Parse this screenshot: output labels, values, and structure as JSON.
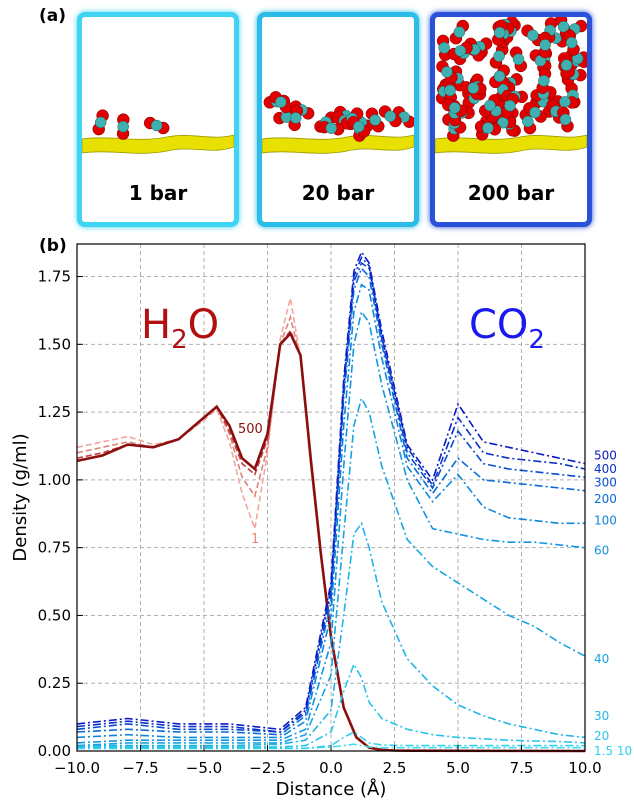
{
  "panel_a": {
    "label": "(a)",
    "snapshots": [
      {
        "pressure_label": "1 bar",
        "frame_color": "#3fd4f2",
        "molecule_level": 0.03
      },
      {
        "pressure_label": "20 bar",
        "frame_color": "#2bbde8",
        "molecule_level": 0.18
      },
      {
        "pressure_label": "200 bar",
        "frame_color": "#2a52d8",
        "molecule_level": 0.75
      }
    ]
  },
  "panel_b": {
    "label": "(b)"
  },
  "chart_data": {
    "type": "line",
    "xlabel": "Distance  (Å)",
    "ylabel": "Density  (g/ml)",
    "xlim": [
      -10.0,
      10.0
    ],
    "ylim": [
      0.0,
      1.87
    ],
    "xticks": [
      "−10.0",
      "−7.5",
      "−5.0",
      "−2.5",
      "0.0",
      "2.5",
      "5.0",
      "7.5",
      "10.0"
    ],
    "xtick_values": [
      -10,
      -7.5,
      -5,
      -2.5,
      0,
      2.5,
      5,
      7.5,
      10
    ],
    "yticks": [
      "0.00",
      "0.25",
      "0.50",
      "0.75",
      "1.00",
      "1.25",
      "1.50",
      "1.75"
    ],
    "ytick_values": [
      0,
      0.25,
      0.5,
      0.75,
      1.0,
      1.25,
      1.5,
      1.75
    ],
    "grid": true,
    "annotations": {
      "h2o": {
        "base": "H",
        "sub": "2",
        "tail": "O",
        "color": "#b01010"
      },
      "co2": {
        "base": "CO",
        "sub": "2",
        "tail": "",
        "color": "#1a1af0"
      },
      "h2o_high_label": "500",
      "h2o_low_label": "1"
    },
    "h2o_series": [
      {
        "shade": "#f0a8a0",
        "x": [
          -10,
          -9,
          -8,
          -7,
          -6,
          -5,
          -4.5,
          -4,
          -3.5,
          -3,
          -2.5,
          -2,
          -1.6,
          -1.2,
          -0.8,
          -0.4,
          0,
          0.5,
          1,
          1.5,
          2,
          2.5,
          3,
          10
        ],
        "y": [
          1.12,
          1.14,
          1.16,
          1.13,
          1.15,
          1.22,
          1.26,
          1.14,
          0.95,
          0.82,
          1.1,
          1.52,
          1.67,
          1.45,
          1.05,
          0.72,
          0.42,
          0.16,
          0.05,
          0.012,
          0.004,
          0.002,
          0.001,
          0
        ]
      },
      {
        "shade": "#e08078",
        "x": [
          -10,
          -9,
          -8,
          -7,
          -6,
          -5,
          -4.5,
          -4,
          -3.5,
          -3,
          -2.5,
          -2,
          -1.6,
          -1.2,
          -0.8,
          -0.4,
          0,
          0.5,
          1,
          1.5,
          2,
          2.5,
          3,
          10
        ],
        "y": [
          1.1,
          1.12,
          1.14,
          1.12,
          1.15,
          1.23,
          1.27,
          1.17,
          1.01,
          0.94,
          1.12,
          1.5,
          1.6,
          1.45,
          1.06,
          0.72,
          0.42,
          0.16,
          0.05,
          0.012,
          0.004,
          0.002,
          0.001,
          0
        ]
      },
      {
        "shade": "#c04040",
        "x": [
          -10,
          -9,
          -8,
          -7,
          -6,
          -5,
          -4.5,
          -4,
          -3.5,
          -3,
          -2.5,
          -2,
          -1.6,
          -1.2,
          -0.8,
          -0.4,
          0,
          0.5,
          1,
          1.5,
          2,
          2.5,
          3,
          10
        ],
        "y": [
          1.08,
          1.1,
          1.13,
          1.12,
          1.15,
          1.23,
          1.27,
          1.18,
          1.06,
          1.02,
          1.15,
          1.5,
          1.55,
          1.46,
          1.07,
          0.73,
          0.42,
          0.16,
          0.05,
          0.012,
          0.004,
          0.002,
          0.001,
          0
        ]
      },
      {
        "shade": "#8b0f0f",
        "x": [
          -10,
          -9,
          -8,
          -7,
          -6,
          -5,
          -4.5,
          -4,
          -3.5,
          -3,
          -2.5,
          -2,
          -1.6,
          -1.2,
          -0.8,
          -0.4,
          0,
          0.5,
          1,
          1.5,
          2,
          2.5,
          3,
          10
        ],
        "y": [
          1.07,
          1.09,
          1.13,
          1.12,
          1.15,
          1.23,
          1.27,
          1.2,
          1.08,
          1.04,
          1.17,
          1.5,
          1.54,
          1.46,
          1.08,
          0.73,
          0.42,
          0.16,
          0.05,
          0.012,
          0.004,
          0.002,
          0.001,
          0
        ]
      }
    ],
    "co2_series": [
      {
        "name": "1.5",
        "color": "#40dcf0",
        "x": [
          -10,
          -8,
          -6,
          -4,
          -2,
          -1,
          0,
          0.5,
          0.9,
          1.2,
          1.5,
          2,
          3,
          4,
          5,
          6,
          7,
          8,
          9,
          10
        ],
        "y": [
          0.01,
          0.01,
          0.01,
          0.01,
          0.01,
          0.01,
          0.015,
          0.02,
          0.025,
          0.02,
          0.015,
          0.012,
          0.012,
          0.012,
          0.012,
          0.012,
          0.012,
          0.012,
          0.012,
          0.012
        ]
      },
      {
        "name": "10",
        "color": "#30d0ee",
        "x": [
          -10,
          -8,
          -6,
          -4,
          -2,
          -1,
          0,
          0.5,
          0.9,
          1.2,
          1.5,
          2,
          3,
          4,
          5,
          6,
          7,
          8,
          9,
          10
        ],
        "y": [
          0.01,
          0.01,
          0.01,
          0.01,
          0.01,
          0.01,
          0.02,
          0.05,
          0.07,
          0.05,
          0.03,
          0.022,
          0.02,
          0.02,
          0.02,
          0.02,
          0.02,
          0.02,
          0.02,
          0.02
        ]
      },
      {
        "name": "20",
        "color": "#28c4ec",
        "x": [
          -10,
          -8,
          -6,
          -4,
          -2,
          -1,
          0,
          0.5,
          0.9,
          1.2,
          1.5,
          2,
          3,
          4,
          5,
          6,
          7,
          8,
          9,
          10
        ],
        "y": [
          0.015,
          0.015,
          0.015,
          0.015,
          0.015,
          0.02,
          0.07,
          0.22,
          0.32,
          0.27,
          0.18,
          0.12,
          0.08,
          0.06,
          0.05,
          0.045,
          0.04,
          0.037,
          0.035,
          0.03
        ]
      },
      {
        "name": "30",
        "color": "#20b4e8",
        "x": [
          -10,
          -8,
          -6,
          -4,
          -2,
          -1,
          0,
          0.5,
          0.9,
          1.2,
          1.5,
          2,
          3,
          4,
          5,
          6,
          7,
          8,
          9,
          10
        ],
        "y": [
          0.02,
          0.02,
          0.02,
          0.02,
          0.025,
          0.04,
          0.15,
          0.5,
          0.8,
          0.84,
          0.75,
          0.55,
          0.34,
          0.24,
          0.17,
          0.13,
          0.1,
          0.08,
          0.06,
          0.05
        ]
      },
      {
        "name": "40",
        "color": "#18a4e2",
        "x": [
          -10,
          -8,
          -6,
          -4,
          -2,
          -1,
          0,
          0.5,
          0.9,
          1.2,
          1.5,
          2,
          3,
          4,
          5,
          6,
          7,
          8,
          9,
          10
        ],
        "y": [
          0.02,
          0.03,
          0.03,
          0.03,
          0.03,
          0.06,
          0.28,
          0.8,
          1.2,
          1.3,
          1.25,
          1.05,
          0.78,
          0.68,
          0.62,
          0.56,
          0.5,
          0.46,
          0.4,
          0.35
        ]
      },
      {
        "name": "60",
        "color": "#1296e0",
        "x": [
          -10,
          -8,
          -6,
          -4,
          -2,
          -1,
          0,
          0.5,
          0.9,
          1.2,
          1.5,
          2,
          3,
          4,
          5,
          6,
          7,
          8,
          9,
          10
        ],
        "y": [
          0.03,
          0.04,
          0.04,
          0.04,
          0.04,
          0.08,
          0.4,
          1.05,
          1.5,
          1.62,
          1.58,
          1.35,
          1.0,
          0.82,
          0.8,
          0.78,
          0.77,
          0.77,
          0.76,
          0.75
        ]
      },
      {
        "name": "100",
        "color": "#0c86dc",
        "x": [
          -10,
          -8,
          -6,
          -4,
          -2,
          -1,
          0,
          0.5,
          0.9,
          1.2,
          1.5,
          2,
          3,
          4,
          5,
          6,
          7,
          8,
          9,
          10
        ],
        "y": [
          0.05,
          0.06,
          0.05,
          0.05,
          0.05,
          0.11,
          0.5,
          1.2,
          1.62,
          1.72,
          1.7,
          1.45,
          1.05,
          0.92,
          1.02,
          0.9,
          0.86,
          0.85,
          0.84,
          0.84
        ]
      },
      {
        "name": "200",
        "color": "#0a6ad8",
        "x": [
          -10,
          -8,
          -6,
          -4,
          -2,
          -1,
          0,
          0.5,
          0.9,
          1.2,
          1.5,
          2,
          3,
          4,
          5,
          6,
          7,
          8,
          9,
          10
        ],
        "y": [
          0.07,
          0.08,
          0.07,
          0.07,
          0.06,
          0.13,
          0.55,
          1.3,
          1.7,
          1.78,
          1.75,
          1.5,
          1.08,
          0.95,
          1.08,
          1.0,
          0.99,
          0.98,
          0.97,
          0.96
        ]
      },
      {
        "name": "300",
        "color": "#0a4ad2",
        "x": [
          -10,
          -8,
          -6,
          -4,
          -2,
          -1,
          0,
          0.5,
          0.9,
          1.2,
          1.5,
          2,
          3,
          4,
          5,
          6,
          7,
          8,
          9,
          10
        ],
        "y": [
          0.08,
          0.1,
          0.08,
          0.08,
          0.07,
          0.14,
          0.58,
          1.33,
          1.73,
          1.8,
          1.78,
          1.52,
          1.1,
          0.97,
          1.18,
          1.06,
          1.04,
          1.03,
          1.02,
          1.01
        ]
      },
      {
        "name": "400",
        "color": "#0a30cc",
        "x": [
          -10,
          -8,
          -6,
          -4,
          -2,
          -1,
          0,
          0.5,
          0.9,
          1.2,
          1.5,
          2,
          3,
          4,
          5,
          6,
          7,
          8,
          9,
          10
        ],
        "y": [
          0.09,
          0.11,
          0.09,
          0.09,
          0.07,
          0.15,
          0.6,
          1.35,
          1.75,
          1.82,
          1.79,
          1.53,
          1.12,
          0.98,
          1.23,
          1.1,
          1.08,
          1.07,
          1.06,
          1.04
        ]
      },
      {
        "name": "500",
        "color": "#0a1ac6",
        "x": [
          -10,
          -8,
          -6,
          -4,
          -2,
          -1,
          0,
          0.5,
          0.9,
          1.2,
          1.5,
          2,
          3,
          4,
          5,
          6,
          7,
          8,
          9,
          10
        ],
        "y": [
          0.1,
          0.12,
          0.1,
          0.1,
          0.08,
          0.16,
          0.62,
          1.37,
          1.77,
          1.84,
          1.8,
          1.55,
          1.13,
          1.0,
          1.28,
          1.14,
          1.12,
          1.1,
          1.08,
          1.06
        ]
      }
    ],
    "co2_labels": [
      {
        "text": "500",
        "y": 1.09,
        "color": "#0a1ac6"
      },
      {
        "text": "400",
        "y": 1.04,
        "color": "#0a30cc"
      },
      {
        "text": "300",
        "y": 0.99,
        "color": "#0a4ad2"
      },
      {
        "text": "200",
        "y": 0.93,
        "color": "#0a6ad8"
      },
      {
        "text": "100",
        "y": 0.85,
        "color": "#0c86dc"
      },
      {
        "text": "60",
        "y": 0.74,
        "color": "#1296e0"
      },
      {
        "text": "40",
        "y": 0.34,
        "color": "#18a4e2"
      },
      {
        "text": "30",
        "y": 0.13,
        "color": "#20b4e8"
      },
      {
        "text": "20",
        "y": 0.055,
        "color": "#28c4ec"
      },
      {
        "text": "1.5 10",
        "y": 0.0,
        "color": "#30d0ee"
      }
    ]
  }
}
